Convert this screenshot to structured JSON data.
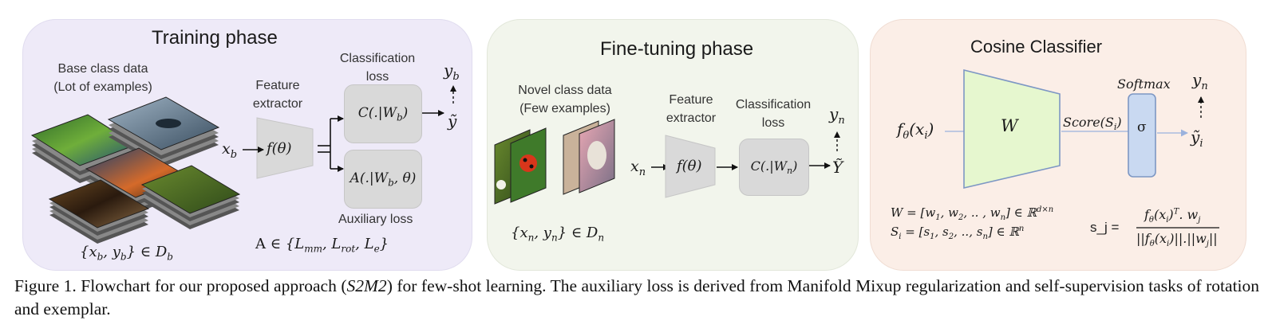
{
  "training": {
    "title": "Training phase",
    "base_data_line1": "Base class data",
    "base_data_line2": "(Lot of examples)",
    "feature_line1": "Feature",
    "feature_line2": "extractor",
    "class_loss_line1": "Classification",
    "class_loss_line2": "loss",
    "aux_loss": "Auxiliary loss",
    "input": "x_b",
    "extractor": "f(θ)",
    "classifier": "C(.|W_b)",
    "aux": "A(.|W_b, θ)",
    "y_top": "y_b",
    "y_bottom": "ỹ",
    "dataset": "{x_b, y_b} ∈ D_b",
    "aux_set": "A ∈ {L_mm, L_rot, L_e}"
  },
  "finetune": {
    "title": "Fine-tuning phase",
    "novel_line1": "Novel class data",
    "novel_line2": "(Few examples)",
    "feature_line1": "Feature",
    "feature_line2": "extractor",
    "class_loss_line1": "Classification",
    "class_loss_line2": "loss",
    "input": "x_n",
    "extractor": "f(θ)",
    "classifier": "C(.|W_n)",
    "y_top": "y_n",
    "y_bottom": "Ỹ",
    "dataset": "{x_n, y_n} ∈ D_n"
  },
  "cosine": {
    "title": "Cosine Classifier",
    "input": "f_θ(x_i)",
    "weight": "W",
    "score": "Score(S_i)",
    "softmax": "Softmax",
    "sigma": "σ",
    "y_top": "y_n",
    "y_bottom": "ỹ_i",
    "eq_w": "W = [w_1, w_2, .. , w_n] ∈ ℝ^(d×n)",
    "eq_s": "S_i = [s_1, s_2, .., s_n] ∈ ℝ^n",
    "eq_sj_lhs": "s_j =",
    "eq_sj_num": "f_θ(x_i)^T . w_j",
    "eq_sj_den": "||f_θ(x_i)||.||w_j||"
  },
  "caption": {
    "label": "Figure 1.",
    "text_pre": " Flowchart for our proposed approach (",
    "method": "S2M2",
    "text_post": ") for few-shot learning.  The auxiliary loss is derived from Manifold Mixup regularization and self-supervision tasks of rotation and exemplar."
  },
  "colors": {
    "panel_training": "#eeeaf8",
    "panel_finetune": "#f2f5ec",
    "panel_cosine": "#fbeee7",
    "box_gray": "#d9d9d9",
    "weight_fill": "#e6f7cf",
    "softmax_fill": "#c9d9f1",
    "arrow_blue": "#9ab2dd"
  },
  "icons": [
    "image-stack-icon",
    "image-pair-icon"
  ]
}
